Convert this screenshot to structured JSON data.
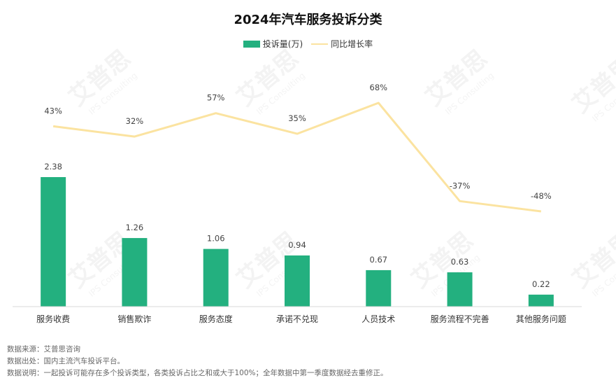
{
  "chart_data": {
    "type": "bar",
    "title": "2024年汽车服务投诉分类",
    "categories": [
      "服务收费",
      "销售欺诈",
      "服务态度",
      "承诺不兑现",
      "人员技术",
      "服务流程不完善",
      "其他服务问题"
    ],
    "series": [
      {
        "name": "投诉量(万)",
        "type": "bar",
        "color": "#23b07f",
        "values": [
          2.38,
          1.26,
          1.06,
          0.94,
          0.67,
          0.63,
          0.22
        ],
        "labels": [
          "2.38",
          "1.26",
          "1.06",
          "0.94",
          "0.67",
          "0.63",
          "0.22"
        ]
      },
      {
        "name": "同比增长率",
        "type": "line",
        "color": "#fbe3a0",
        "values": [
          43,
          32,
          57,
          35,
          68,
          -37,
          -48
        ],
        "labels": [
          "43%",
          "32%",
          "57%",
          "35%",
          "68%",
          "-37%",
          "-48%"
        ]
      }
    ],
    "legend": "top-center",
    "grid": false
  },
  "footer": {
    "source": "数据来源：艾普思咨询",
    "origin": "数据出处：国内主流汽车投诉平台。",
    "note": "数据说明：一起投诉可能存在多个投诉类型，各类投诉占比之和或大于100%；全年数据中第一季度数据经去重修正。"
  },
  "watermark": {
    "text": "艾普思",
    "subtext": "IPS Consulting"
  }
}
